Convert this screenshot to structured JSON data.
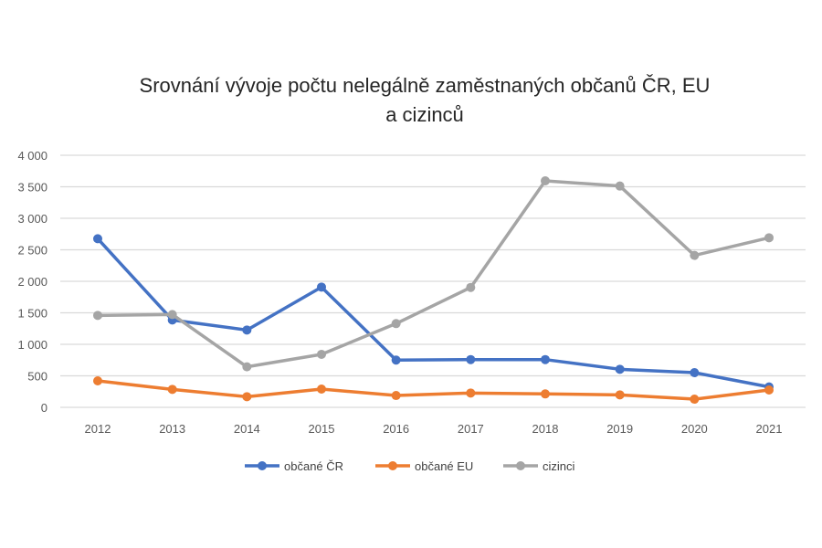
{
  "chart_data": {
    "type": "line",
    "title_line1": "Srovnání vývoje počtu nelegálně zaměstnaných občanů ČR, EU",
    "title_line2": "a cizinců",
    "xlabel": "",
    "ylabel": "",
    "x": [
      "2012",
      "2013",
      "2014",
      "2015",
      "2016",
      "2017",
      "2018",
      "2019",
      "2020",
      "2021"
    ],
    "ylim": [
      0,
      4000
    ],
    "yticks": [
      0,
      500,
      1000,
      1500,
      2000,
      2500,
      3000,
      3500,
      4000
    ],
    "ytick_labels": [
      "0",
      "500",
      "1 000",
      "1 500",
      "2 000",
      "2 500",
      "3 000",
      "3 500",
      "4 000"
    ],
    "grid": true,
    "legend_position": "bottom",
    "series": [
      {
        "name": "občané ČR",
        "color": "#4472C4",
        "values": [
          2676,
          1386,
          1227,
          1908,
          750,
          758,
          758,
          604,
          551,
          324
        ]
      },
      {
        "name": "občané EU",
        "color": "#ED7D31",
        "values": [
          420,
          285,
          169,
          290,
          188,
          227,
          213,
          198,
          130,
          275
        ]
      },
      {
        "name": "cizinci",
        "color": "#A5A5A5",
        "values": [
          1459,
          1473,
          643,
          841,
          1329,
          1903,
          3594,
          3512,
          2411,
          2691
        ]
      }
    ]
  }
}
